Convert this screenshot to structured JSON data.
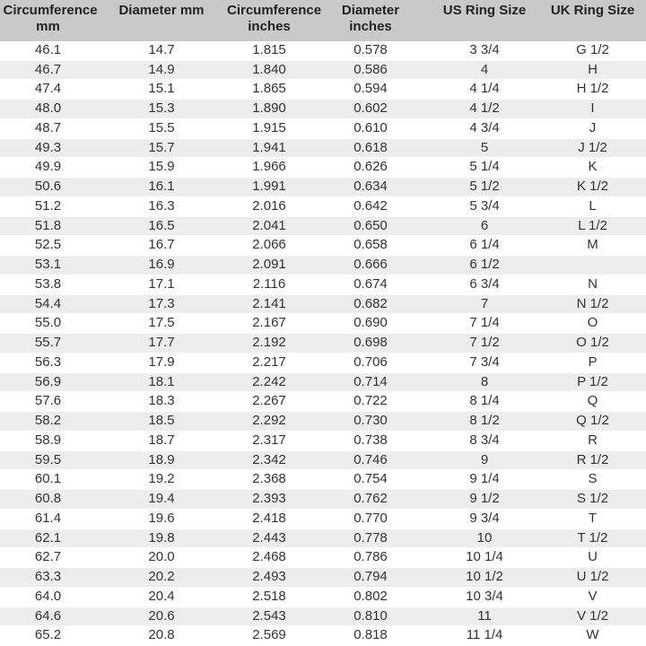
{
  "table": {
    "header": [
      "Circumference mm",
      "Diameter mm",
      "Circumference inches",
      "Diameter inches",
      "US Ring Size",
      "UK Ring Size"
    ],
    "rows": [
      [
        "46.1",
        "14.7",
        "1.815",
        "0.578",
        "3 3/4",
        "G 1/2"
      ],
      [
        "46.7",
        "14.9",
        "1.840",
        "0.586",
        "4",
        "H"
      ],
      [
        "47.4",
        "15.1",
        "1.865",
        "0.594",
        "4 1/4",
        "H 1/2"
      ],
      [
        "48.0",
        "15.3",
        "1.890",
        "0.602",
        "4 1/2",
        "I"
      ],
      [
        "48.7",
        "15.5",
        "1.915",
        "0.610",
        "4 3/4",
        "J"
      ],
      [
        "49.3",
        "15.7",
        "1.941",
        "0.618",
        "5",
        "J 1/2"
      ],
      [
        "49.9",
        "15.9",
        "1.966",
        "0.626",
        "5 1/4",
        "K"
      ],
      [
        "50.6",
        "16.1",
        "1.991",
        "0.634",
        "5 1/2",
        "K 1/2"
      ],
      [
        "51.2",
        "16.3",
        "2.016",
        "0.642",
        "5 3/4",
        "L"
      ],
      [
        "51.8",
        "16.5",
        "2.041",
        "0.650",
        "6",
        "L 1/2"
      ],
      [
        "52.5",
        "16.7",
        "2.066",
        "0.658",
        "6 1/4",
        "M"
      ],
      [
        "53.1",
        "16.9",
        "2.091",
        "0.666",
        "6 1/2",
        null
      ],
      [
        "53.8",
        "17.1",
        "2.116",
        "0.674",
        "6 3/4",
        "N"
      ],
      [
        "54.4",
        "17.3",
        "2.141",
        "0.682",
        "7",
        "N 1/2"
      ],
      [
        "55.0",
        "17.5",
        "2.167",
        "0.690",
        "7 1/4",
        "O"
      ],
      [
        "55.7",
        "17.7",
        "2.192",
        "0.698",
        "7 1/2",
        "O 1/2"
      ],
      [
        "56.3",
        "17.9",
        "2.217",
        "0.706",
        "7 3/4",
        "P"
      ],
      [
        "56.9",
        "18.1",
        "2.242",
        "0.714",
        "8",
        "P 1/2"
      ],
      [
        "57.6",
        "18.3",
        "2.267",
        "0.722",
        "8 1/4",
        "Q"
      ],
      [
        "58.2",
        "18.5",
        "2.292",
        "0.730",
        "8 1/2",
        "Q 1/2"
      ],
      [
        "58.9",
        "18.7",
        "2.317",
        "0.738",
        "8 3/4",
        "R"
      ],
      [
        "59.5",
        "18.9",
        "2.342",
        "0.746",
        "9",
        "R 1/2"
      ],
      [
        "60.1",
        "19.2",
        "2.368",
        "0.754",
        "9 1/4",
        "S"
      ],
      [
        "60.8",
        "19.4",
        "2.393",
        "0.762",
        "9 1/2",
        "S 1/2"
      ],
      [
        "61.4",
        "19.6",
        "2.418",
        "0.770",
        "9 3/4",
        "T"
      ],
      [
        "62.1",
        "19.8",
        "2.443",
        "0.778",
        "10",
        "T 1/2"
      ],
      [
        "62.7",
        "20.0",
        "2.468",
        "0.786",
        "10 1/4",
        "U"
      ],
      [
        "63.3",
        "20.2",
        "2.493",
        "0.794",
        "10 1/2",
        "U 1/2"
      ],
      [
        "64.0",
        "20.4",
        "2.518",
        "0.802",
        "10 3/4",
        "V"
      ],
      [
        "64.6",
        "20.6",
        "2.543",
        "0.810",
        "11",
        "V 1/2"
      ],
      [
        "65.2",
        "20.8",
        "2.569",
        "0.818",
        "11 1/4",
        "W"
      ]
    ]
  }
}
